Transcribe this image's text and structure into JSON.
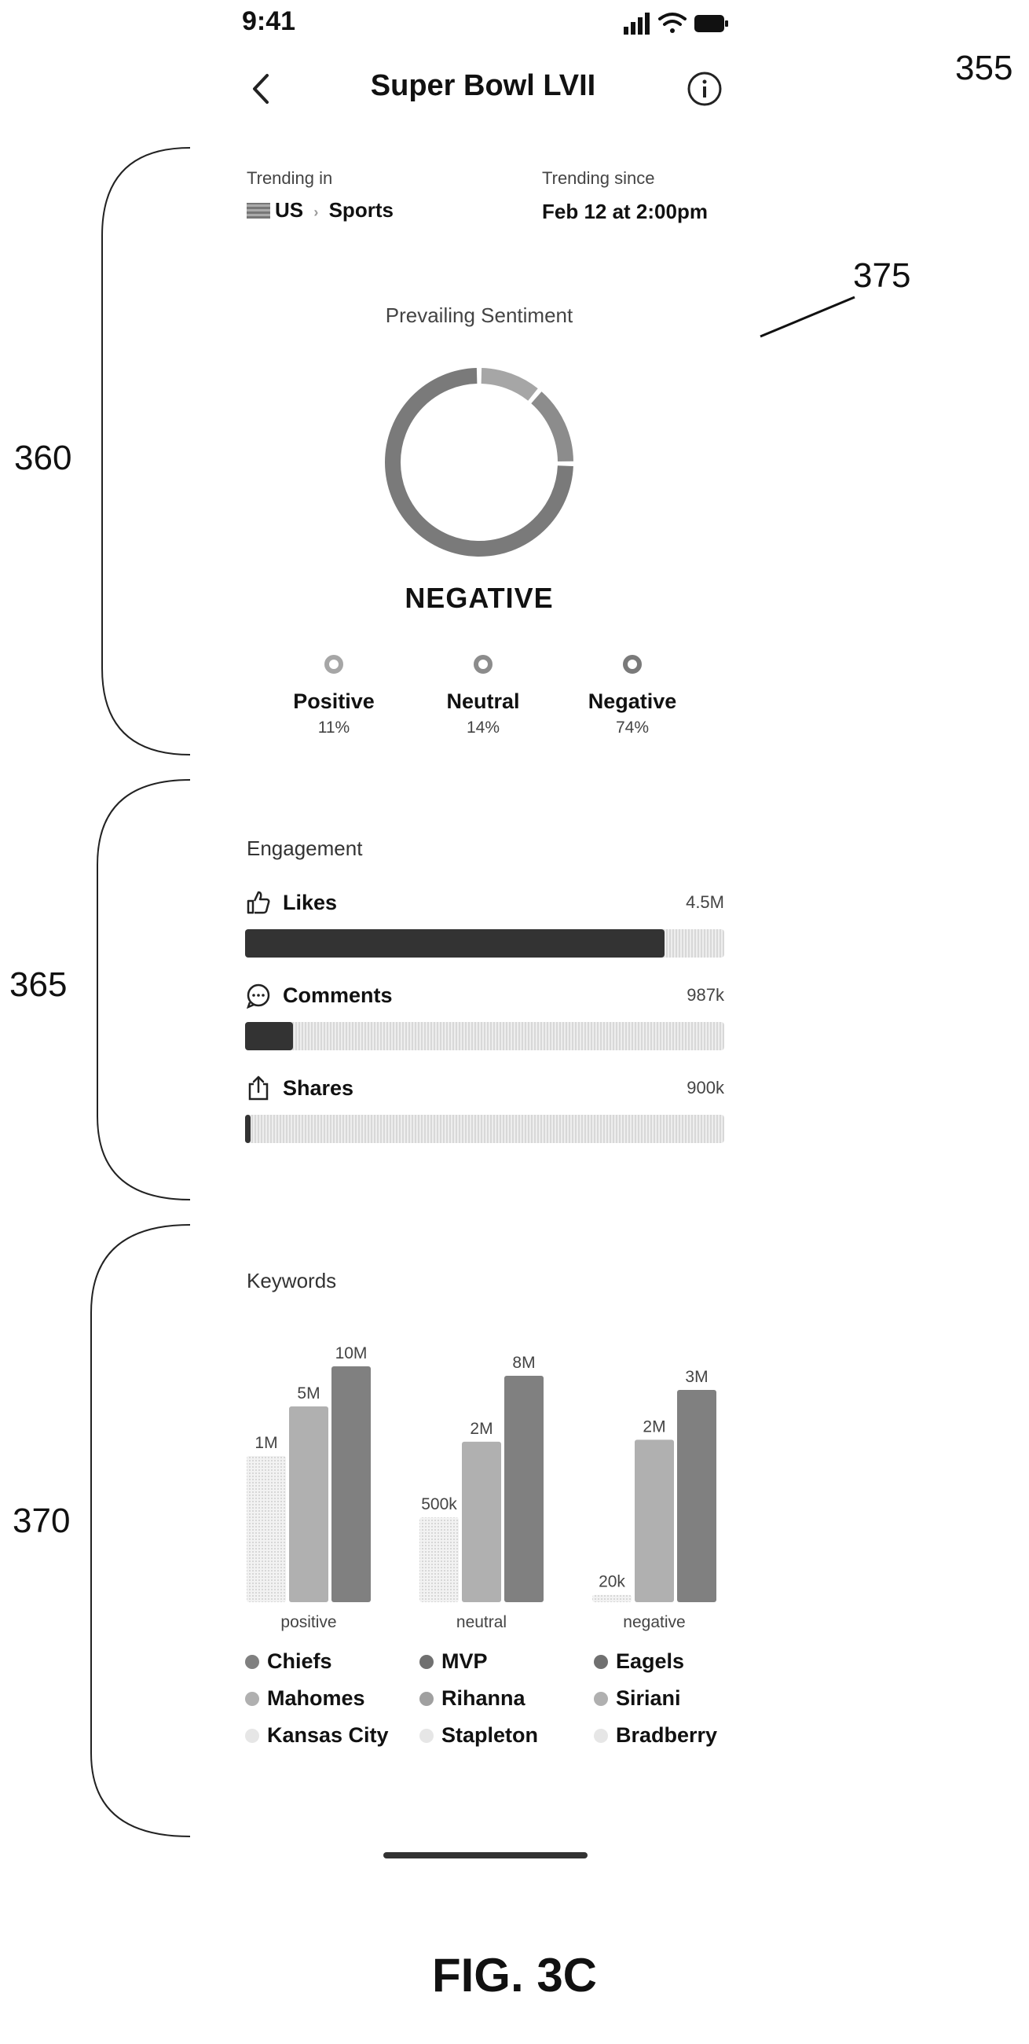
{
  "status_bar": {
    "time": "9:41"
  },
  "header": {
    "title": "Super Bowl LVII"
  },
  "figure_labels": {
    "top_right": "355",
    "arrow_ref": "375",
    "brace_1": "360",
    "brace_2": "365",
    "brace_3": "370"
  },
  "trending": {
    "in_label": "Trending in",
    "country": "US",
    "separator": "›",
    "category": "Sports",
    "since_label": "Trending since",
    "since_value": "Feb 12 at 2:00pm"
  },
  "sentiment": {
    "title": "Prevailing Sentiment",
    "prevailing": "NEGATIVE",
    "items": [
      {
        "name": "Positive",
        "pct": "11%",
        "value": 11,
        "color": "#a6a6a6"
      },
      {
        "name": "Neutral",
        "pct": "14%",
        "value": 14,
        "color": "#8c8c8c"
      },
      {
        "name": "Negative",
        "pct": "74%",
        "value": 74,
        "color": "#7a7a7a"
      }
    ]
  },
  "engagement": {
    "title": "Engagement",
    "items": [
      {
        "name": "Likes",
        "value": "4.5M",
        "fill": 0.875,
        "icon": "thumbs-up-icon"
      },
      {
        "name": "Comments",
        "value": "987k",
        "fill": 0.1,
        "icon": "comment-icon"
      },
      {
        "name": "Shares",
        "value": "900k",
        "fill": 0.012,
        "icon": "share-icon"
      }
    ]
  },
  "keywords": {
    "title": "Keywords",
    "chart_data": {
      "type": "bar",
      "categories": [
        "positive",
        "neutral",
        "negative"
      ],
      "groups": [
        {
          "category": "positive",
          "bars": [
            {
              "keyword": "Kansas City",
              "value_label": "1M",
              "value": 1000000
            },
            {
              "keyword": "Mahomes",
              "value_label": "5M",
              "value": 5000000
            },
            {
              "keyword": "Chiefs",
              "value_label": "10M",
              "value": 10000000
            }
          ]
        },
        {
          "category": "neutral",
          "bars": [
            {
              "keyword": "Stapleton",
              "value_label": "500k",
              "value": 500000
            },
            {
              "keyword": "Rihanna",
              "value_label": "2M",
              "value": 2000000
            },
            {
              "keyword": "MVP",
              "value_label": "8M",
              "value": 8000000
            }
          ]
        },
        {
          "category": "negative",
          "bars": [
            {
              "keyword": "Bradberry",
              "value_label": "20k",
              "value": 20000
            },
            {
              "keyword": "Siriani",
              "value_label": "2M",
              "value": 2000000
            },
            {
              "keyword": "Eagels",
              "value_label": "3M",
              "value": 3000000
            }
          ]
        }
      ],
      "bar_levels": [
        0.62,
        0.83,
        1.0
      ],
      "colors": [
        "#e9e9e9",
        "#b0b0b0",
        "#808080"
      ]
    },
    "legend": [
      {
        "label": "Chiefs",
        "color": "#808080"
      },
      {
        "label": "MVP",
        "color": "#707070"
      },
      {
        "label": "Eagels",
        "color": "#707070"
      },
      {
        "label": "Mahomes",
        "color": "#b0b0b0"
      },
      {
        "label": "Rihanna",
        "color": "#a0a0a0"
      },
      {
        "label": "Siriani",
        "color": "#b0b0b0"
      },
      {
        "label": "Kansas City",
        "color": "#e6e6e6"
      },
      {
        "label": "Stapleton",
        "color": "#e6e6e6"
      },
      {
        "label": "Bradberry",
        "color": "#e6e6e6"
      }
    ]
  },
  "caption": "FIG. 3C"
}
